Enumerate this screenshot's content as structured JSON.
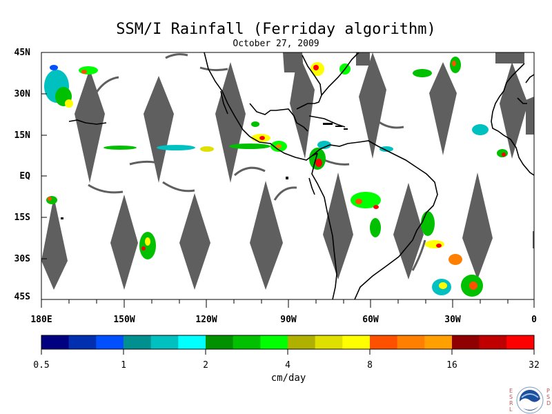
{
  "title": "SSM/I Rainfall (Ferriday algorithm)",
  "date": "October 27, 2009",
  "y_labels": [
    "45N",
    "30N",
    "15N",
    "EQ",
    "15S",
    "30S",
    "45S"
  ],
  "x_labels": [
    "180E",
    "150W",
    "120W",
    "90W",
    "60W",
    "30W",
    "0"
  ],
  "colorbar": {
    "colors": [
      "#000080",
      "#0030b0",
      "#0050ff",
      "#009090",
      "#00c0c0",
      "#00ffff",
      "#009000",
      "#00c000",
      "#00ff00",
      "#b0b000",
      "#e0e000",
      "#ffff00",
      "#ff5000",
      "#ff8000",
      "#ffa000",
      "#900000",
      "#c00000",
      "#ff0000"
    ],
    "tick_labels": [
      "0.5",
      "1",
      "2",
      "4",
      "8",
      "16",
      "32"
    ],
    "unit": "cm/day"
  },
  "logo": {
    "name": "noaa-logo",
    "left_letters": "ESRL",
    "right_letters": "PSD"
  },
  "colors": {
    "swath_gap": "#5f5f5f",
    "land_outline": "#000000",
    "background": "#ffffff"
  }
}
